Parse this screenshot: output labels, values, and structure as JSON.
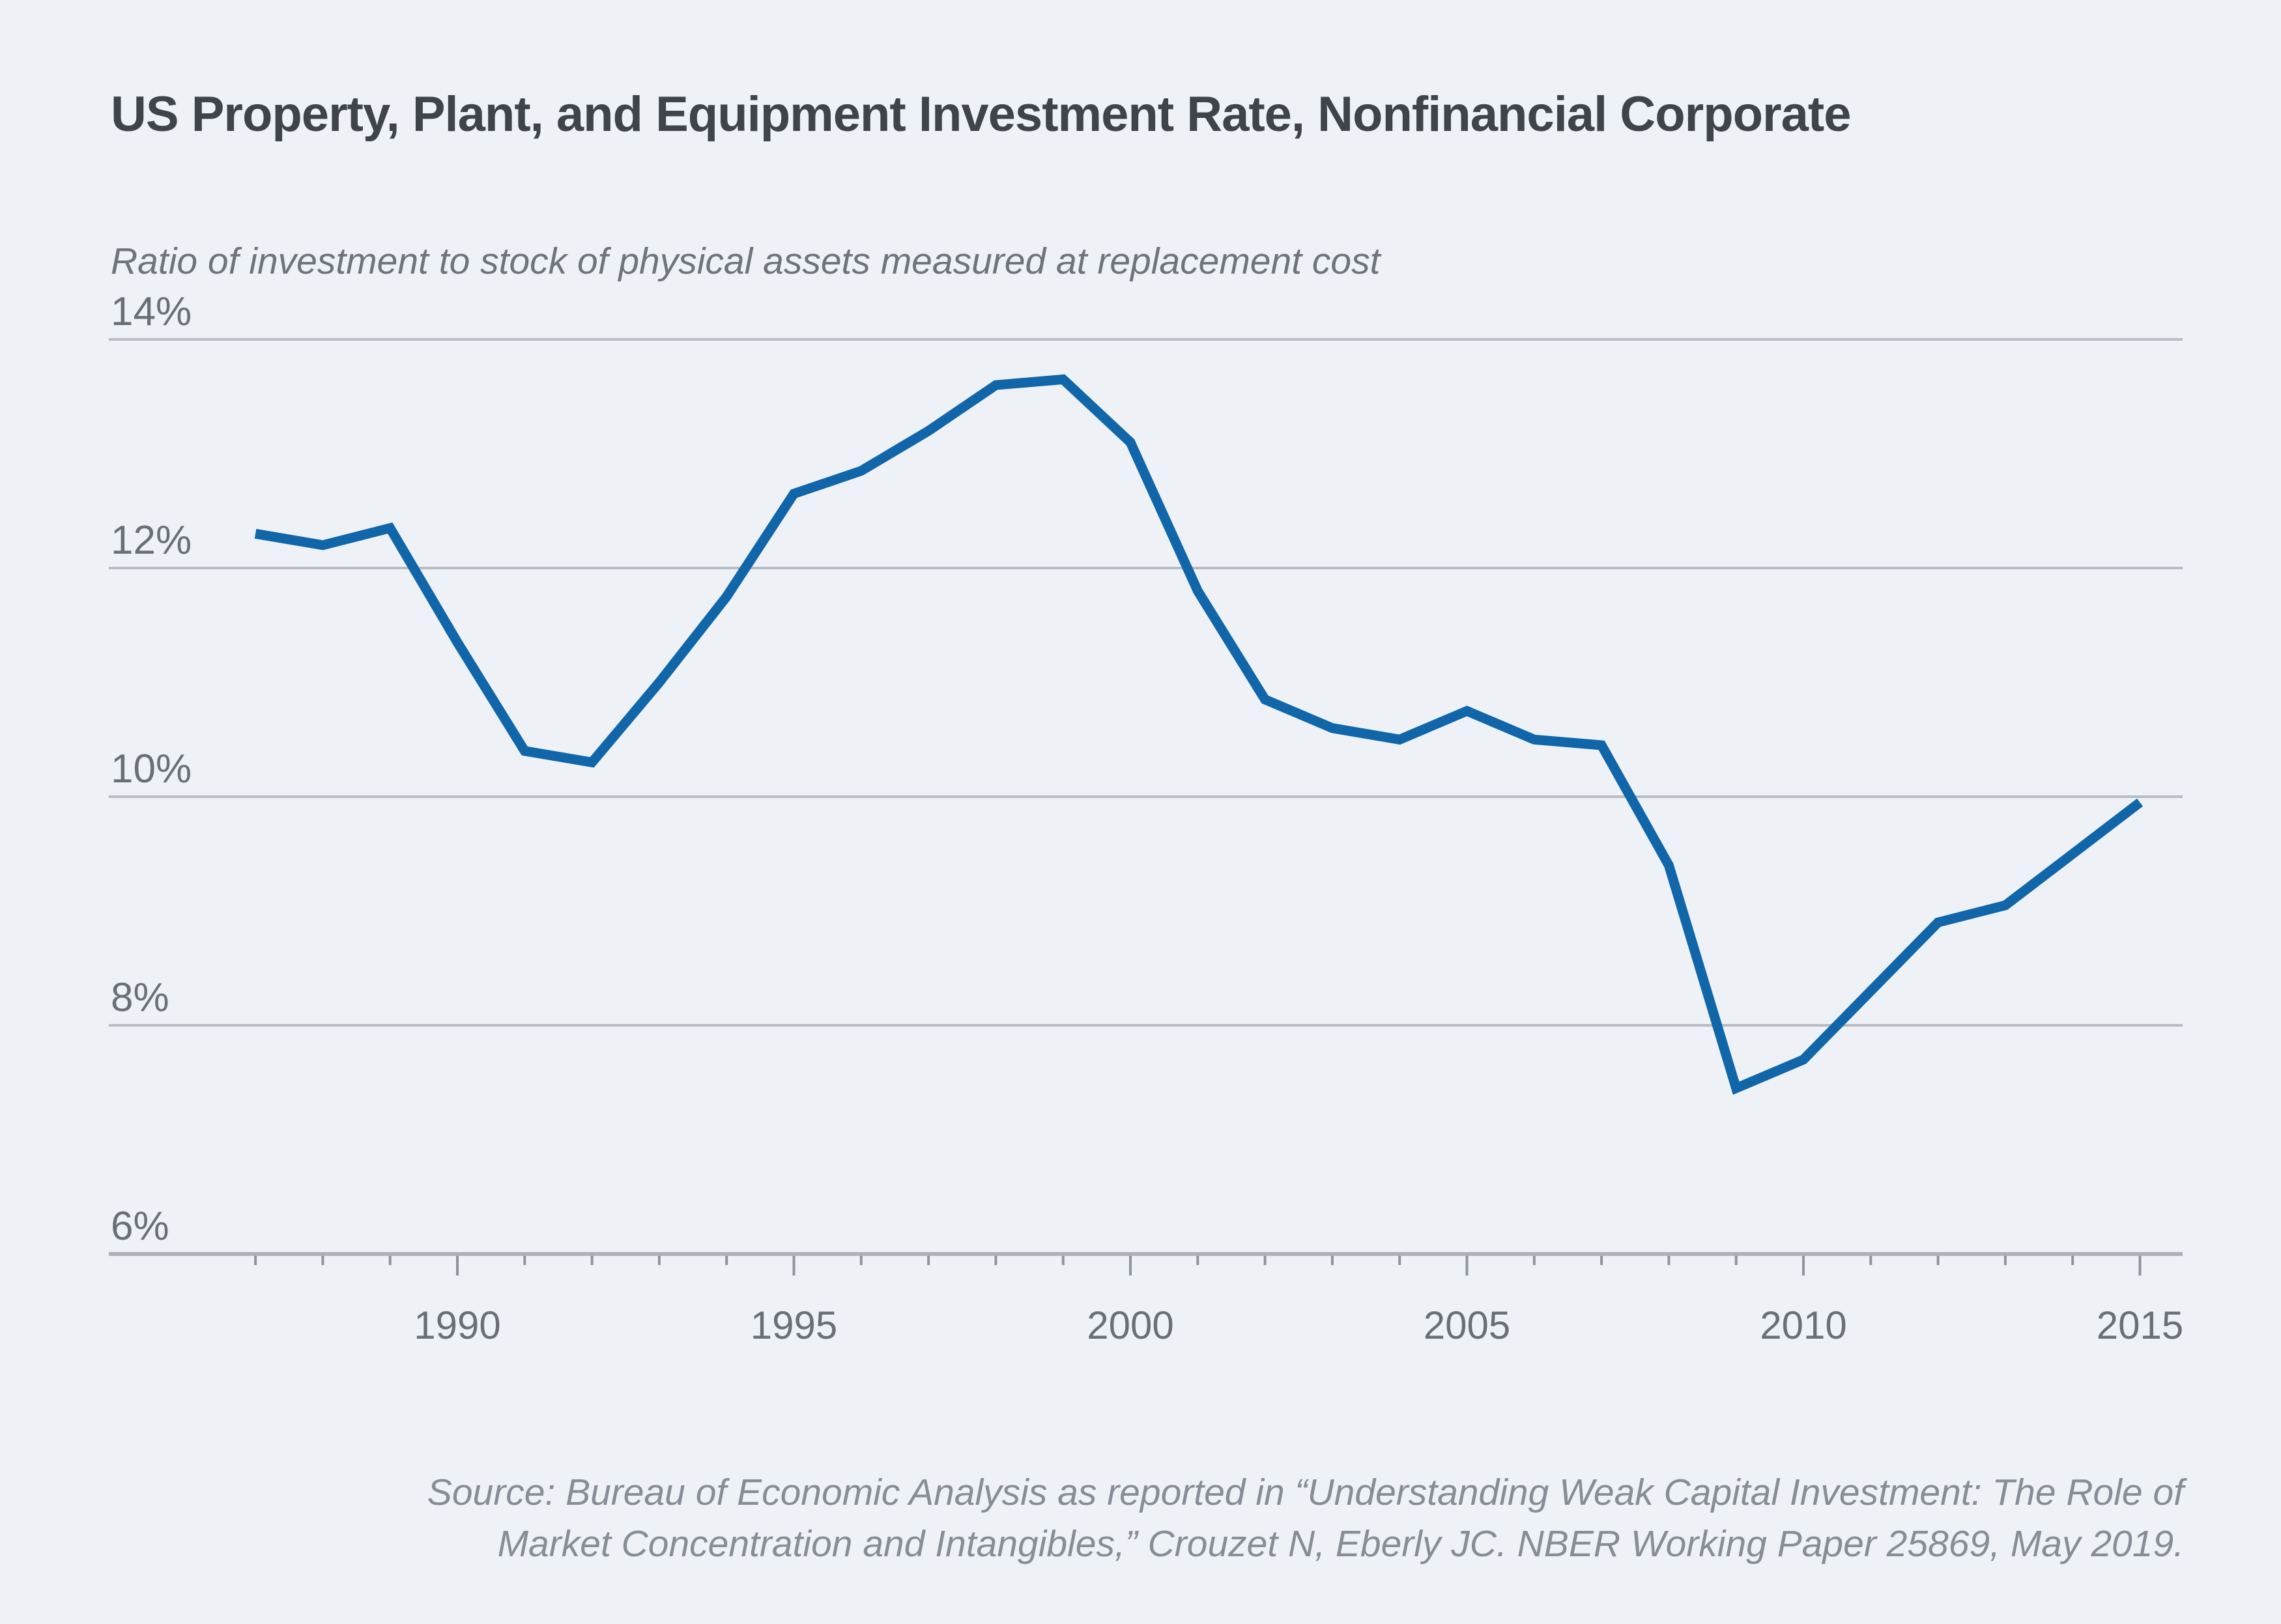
{
  "page": {
    "background_color": "#eef2f7"
  },
  "chart_data": {
    "type": "line",
    "title": "US Property, Plant, and Equipment Investment Rate, Nonfinancial Corporate",
    "subtitle": "Ratio of investment to stock of physical assets measured at replacement cost",
    "ylabel": "",
    "xlabel": "",
    "ylim": [
      6,
      14
    ],
    "xlim": [
      1987,
      2015
    ],
    "grid": "horizontal",
    "legend_position": "none",
    "line_color": "#1066a9",
    "gridline_color": "#b9bcc2",
    "axis_color": "#aeb1b7",
    "tick_color": "#8f949a",
    "label_color": "#6a6f76",
    "y_ticks": [
      {
        "value": 14,
        "label": "14%"
      },
      {
        "value": 12,
        "label": "12%"
      },
      {
        "value": 10,
        "label": "10%"
      },
      {
        "value": 8,
        "label": "8%"
      },
      {
        "value": 6,
        "label": "6%"
      }
    ],
    "x_ticks_major": [
      {
        "value": 1990,
        "label": "1990"
      },
      {
        "value": 1995,
        "label": "1995"
      },
      {
        "value": 2000,
        "label": "2000"
      },
      {
        "value": 2005,
        "label": "2005"
      },
      {
        "value": 2010,
        "label": "2010"
      },
      {
        "value": 2015,
        "label": "2015"
      }
    ],
    "x_ticks_minor_every_year_from": 1987,
    "x_ticks_minor_every_year_to": 2015,
    "series": [
      {
        "name": "PP&E investment rate, nonfinancial corporate",
        "color": "#1066a9",
        "points": [
          [
            1987,
            12.3
          ],
          [
            1988,
            12.2
          ],
          [
            1989,
            12.35
          ],
          [
            1990,
            11.35
          ],
          [
            1991,
            10.4
          ],
          [
            1992,
            10.3
          ],
          [
            1993,
            11.0
          ],
          [
            1994,
            11.75
          ],
          [
            1995,
            12.65
          ],
          [
            1996,
            12.85
          ],
          [
            1997,
            13.2
          ],
          [
            1998,
            13.6
          ],
          [
            1999,
            13.65
          ],
          [
            2000,
            13.1
          ],
          [
            2001,
            11.8
          ],
          [
            2002,
            10.85
          ],
          [
            2003,
            10.6
          ],
          [
            2004,
            10.5
          ],
          [
            2005,
            10.75
          ],
          [
            2006,
            10.5
          ],
          [
            2007,
            10.45
          ],
          [
            2008,
            9.4
          ],
          [
            2009,
            7.45
          ],
          [
            2010,
            7.7
          ],
          [
            2011,
            8.3
          ],
          [
            2012,
            8.9
          ],
          [
            2013,
            9.05
          ],
          [
            2014,
            9.5
          ],
          [
            2015,
            9.95
          ]
        ]
      }
    ],
    "source_lines": [
      "Source: Bureau of Economic Analysis as reported in “Understanding Weak Capital Investment: The Role of",
      "Market Concentration and Intangibles,” Crouzet N, Eberly JC. NBER Working Paper 25869, May 2019."
    ]
  }
}
